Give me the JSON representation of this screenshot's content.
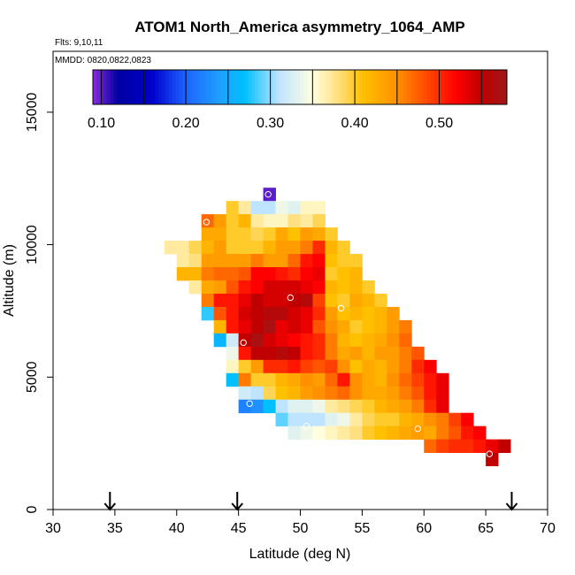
{
  "chart_data": {
    "type": "heatmap",
    "title": "ATOM1 North_America asymmetry_1064_AMP",
    "flights_label": "Flts: 9,10,11",
    "dates_label": "MMDD: 0820,0822,0823",
    "xlabel": "Latitude (deg N)",
    "ylabel": "Altitude (m)",
    "xlim": [
      30,
      70
    ],
    "ylim": [
      0,
      17300
    ],
    "x_ticks": [
      30,
      35,
      40,
      45,
      50,
      55,
      60,
      65,
      70
    ],
    "x_tick_labels": [
      "30",
      "35",
      "40",
      "45",
      "50",
      "55",
      "60",
      "65",
      "70"
    ],
    "y_ticks": [
      0,
      5000,
      10000,
      15000
    ],
    "y_tick_labels": [
      "0",
      "5000",
      "10000",
      "15000"
    ],
    "colorbar": {
      "range": [
        0.09,
        0.58
      ],
      "ticks": [
        0.1,
        0.2,
        0.3,
        0.4,
        0.5
      ],
      "tick_labels": [
        "0.10",
        "0.20",
        "0.30",
        "0.40",
        "0.50"
      ],
      "separators": [
        0.15,
        0.25,
        0.35,
        0.45,
        0.55
      ],
      "color_stops": [
        [
          0.09,
          "#8a2be2"
        ],
        [
          0.12,
          "#0000a0"
        ],
        [
          0.16,
          "#0000cc"
        ],
        [
          0.2,
          "#1e64ff"
        ],
        [
          0.24,
          "#1ea0ff"
        ],
        [
          0.27,
          "#00c0ff"
        ],
        [
          0.31,
          "#bfe4ff"
        ],
        [
          0.35,
          "#ffffe0"
        ],
        [
          0.38,
          "#ffe080"
        ],
        [
          0.41,
          "#ffc000"
        ],
        [
          0.45,
          "#ff9000"
        ],
        [
          0.49,
          "#ff4000"
        ],
        [
          0.52,
          "#ff0000"
        ],
        [
          0.55,
          "#c00000"
        ],
        [
          0.58,
          "#a01818"
        ]
      ]
    },
    "cell_size": {
      "dlat": 1.0,
      "dalt": 500
    },
    "rows": [
      {
        "alt": 11900,
        "lat_start": 47,
        "values": [
          0.1
        ]
      },
      {
        "alt": 11400,
        "lat_start": 44,
        "values": [
          0.4,
          0.37,
          0.31,
          0.31,
          0.34,
          0.33,
          0.36,
          0.36
        ]
      },
      {
        "alt": 10900,
        "lat_start": 42,
        "values": [
          0.47,
          0.44,
          0.4,
          0.42,
          0.37,
          0.36,
          0.36,
          0.38,
          0.37,
          0.39
        ]
      },
      {
        "alt": 10400,
        "lat_start": 42,
        "values": [
          0.43,
          0.43,
          0.4,
          0.4,
          0.39,
          0.4,
          0.43,
          0.41,
          0.44,
          0.43,
          0.4
        ]
      },
      {
        "alt": 9900,
        "lat_start": 39,
        "values": [
          0.37,
          0.37,
          0.39,
          0.42,
          0.44,
          0.4,
          0.4,
          0.4,
          0.42,
          0.44,
          0.44,
          0.46,
          0.5,
          0.42,
          0.4
        ]
      },
      {
        "alt": 9400,
        "lat_start": 40,
        "values": [
          0.37,
          0.38,
          0.44,
          0.44,
          0.44,
          0.44,
          0.46,
          0.44,
          0.44,
          0.47,
          0.51,
          0.52,
          0.41,
          0.4,
          0.4
        ]
      },
      {
        "alt": 8900,
        "lat_start": 40,
        "values": [
          0.42,
          0.42,
          0.46,
          0.47,
          0.47,
          0.48,
          0.52,
          0.52,
          0.51,
          0.5,
          0.52,
          0.53,
          0.4,
          0.41,
          0.42
        ]
      },
      {
        "alt": 8400,
        "lat_start": 41,
        "values": [
          0.37,
          0.43,
          0.44,
          0.48,
          0.51,
          0.52,
          0.54,
          0.54,
          0.54,
          0.53,
          0.52,
          0.42,
          0.41,
          0.42,
          0.4
        ]
      },
      {
        "alt": 7900,
        "lat_start": 42,
        "values": [
          0.46,
          0.51,
          0.51,
          0.53,
          0.55,
          0.54,
          0.54,
          0.55,
          0.56,
          0.49,
          0.41,
          0.4,
          0.43,
          0.42,
          0.4
        ]
      },
      {
        "alt": 7400,
        "lat_start": 42,
        "values": [
          0.28,
          0.48,
          0.51,
          0.54,
          0.55,
          0.56,
          0.56,
          0.54,
          0.53,
          0.5,
          0.44,
          0.41,
          0.42,
          0.41,
          0.42,
          0.44
        ]
      },
      {
        "alt": 6900,
        "lat_start": 43,
        "values": [
          0.42,
          0.51,
          0.53,
          0.55,
          0.57,
          0.53,
          0.54,
          0.53,
          0.48,
          0.45,
          0.43,
          0.4,
          0.41,
          0.42,
          0.44,
          0.46
        ]
      },
      {
        "alt": 6400,
        "lat_start": 43,
        "values": [
          0.26,
          0.32,
          0.55,
          0.57,
          0.54,
          0.53,
          0.52,
          0.51,
          0.5,
          0.46,
          0.42,
          0.41,
          0.42,
          0.43,
          0.45,
          0.47
        ]
      },
      {
        "alt": 5900,
        "lat_start": 44,
        "values": [
          0.34,
          0.51,
          0.55,
          0.55,
          0.56,
          0.55,
          0.51,
          0.5,
          0.46,
          0.43,
          0.44,
          0.42,
          0.44,
          0.44,
          0.46,
          0.48
        ]
      },
      {
        "alt": 5400,
        "lat_start": 44,
        "values": [
          0.36,
          0.4,
          0.44,
          0.5,
          0.5,
          0.51,
          0.49,
          0.48,
          0.49,
          0.45,
          0.41,
          0.43,
          0.42,
          0.44,
          0.46,
          0.5,
          0.52
        ]
      },
      {
        "alt": 4900,
        "lat_start": 44,
        "values": [
          0.27,
          0.46,
          0.4,
          0.4,
          0.42,
          0.43,
          0.45,
          0.44,
          0.47,
          0.51,
          0.45,
          0.43,
          0.42,
          0.45,
          0.47,
          0.49,
          0.51,
          0.53
        ]
      },
      {
        "alt": 4400,
        "lat_start": 45,
        "values": [
          0.32,
          0.31,
          0.39,
          0.41,
          0.42,
          0.44,
          0.45,
          0.46,
          0.47,
          0.45,
          0.43,
          0.43,
          0.44,
          0.46,
          0.48,
          0.51,
          0.53
        ]
      },
      {
        "alt": 3900,
        "lat_start": 45,
        "values": [
          0.22,
          0.23,
          0.27,
          0.31,
          0.33,
          0.33,
          0.34,
          0.37,
          0.38,
          0.39,
          0.4,
          0.42,
          0.43,
          0.44,
          0.46,
          0.5,
          0.53
        ]
      },
      {
        "alt": 3400,
        "lat_start": 48,
        "values": [
          0.29,
          0.31,
          0.31,
          0.31,
          0.33,
          0.34,
          0.37,
          0.39,
          0.4,
          0.4,
          0.42,
          0.43,
          0.45,
          0.46,
          0.49,
          0.52
        ]
      },
      {
        "alt": 2900,
        "lat_start": 49,
        "values": [
          0.33,
          0.34,
          0.35,
          0.36,
          0.37,
          0.38,
          0.4,
          0.41,
          0.42,
          0.43,
          0.44,
          0.43,
          0.46,
          0.48,
          0.51,
          0.52
        ]
      },
      {
        "alt": 2400,
        "lat_start": 60,
        "values": [
          0.47,
          0.49,
          0.5,
          0.5,
          0.51,
          0.53,
          0.55
        ]
      },
      {
        "alt": 1900,
        "lat_start": 65,
        "values": [
          0.55
        ]
      }
    ],
    "markers": [
      {
        "lat": 47.4,
        "alt": 11900
      },
      {
        "lat": 42.4,
        "alt": 10850
      },
      {
        "lat": 49.2,
        "alt": 8000
      },
      {
        "lat": 53.3,
        "alt": 7600
      },
      {
        "lat": 45.4,
        "alt": 6300
      },
      {
        "lat": 45.9,
        "alt": 4000
      },
      {
        "lat": 50.5,
        "alt": 3150
      },
      {
        "lat": 59.5,
        "alt": 3050
      },
      {
        "lat": 65.3,
        "alt": 2100
      }
    ],
    "arrows": [
      34.6,
      44.9,
      67.1
    ]
  }
}
